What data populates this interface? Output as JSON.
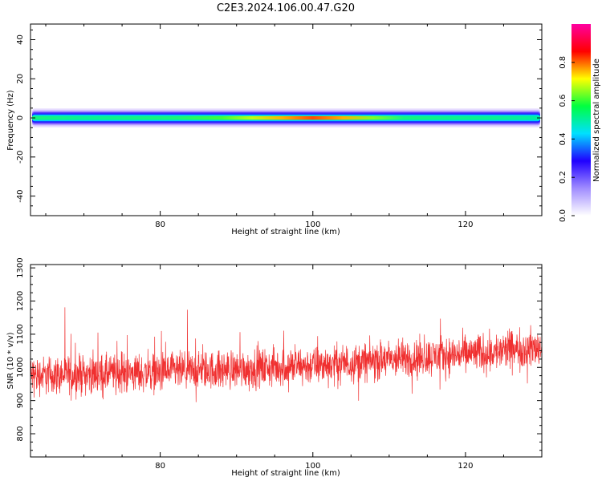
{
  "title": "C2E3.2024.106.00.47.G20",
  "chart_data": [
    {
      "type": "heatmap",
      "xlabel": "Height of straight line (km)",
      "ylabel": "Frequency (Hz)",
      "xlim": [
        63,
        130
      ],
      "ylim": [
        -50,
        48
      ],
      "x_ticks": [
        80,
        100,
        120
      ],
      "y_ticks": [
        40,
        20,
        0,
        -20,
        -40
      ],
      "band_center_hz": 0,
      "band_profile": {
        "x": [
          64,
          70,
          76,
          82,
          88,
          92,
          96,
          100,
          104,
          108,
          112,
          118,
          124,
          130
        ],
        "peak_amplitude": [
          0.45,
          0.42,
          0.44,
          0.46,
          0.55,
          0.65,
          0.8,
          0.92,
          0.8,
          0.6,
          0.45,
          0.43,
          0.42,
          0.4
        ]
      },
      "colorbar": {
        "label": "Normalized spectral amplitude",
        "range": [
          0,
          1
        ],
        "ticks": [
          0.0,
          0.2,
          0.4,
          0.6,
          0.8
        ],
        "colors": [
          "#ffffff",
          "#a08cff",
          "#2000ff",
          "#00e0ff",
          "#00ff40",
          "#ffff00",
          "#ff0000",
          "#ff00a0"
        ]
      },
      "grid": false
    },
    {
      "type": "line",
      "xlabel": "Height of straight line (km)",
      "ylabel": "SNR (10 * v/v)",
      "xlim": [
        63,
        130
      ],
      "ylim": [
        730,
        1310
      ],
      "x_ticks": [
        80,
        100,
        120
      ],
      "y_ticks": [
        800,
        900,
        1000,
        1100,
        1200,
        1300
      ],
      "trend_x": [
        63,
        80,
        100,
        120,
        130
      ],
      "trend_y": [
        975,
        985,
        1005,
        1040,
        1060
      ],
      "noise_amplitude": 85,
      "color": "#f03030",
      "grid": false
    }
  ]
}
